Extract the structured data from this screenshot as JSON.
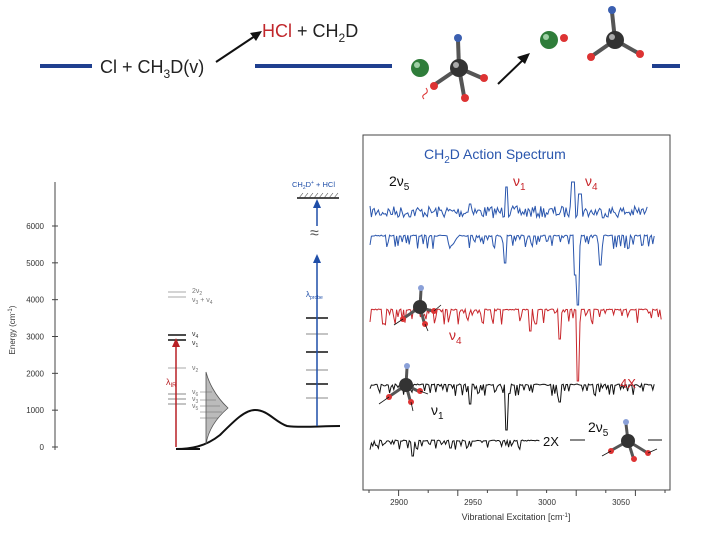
{
  "colors": {
    "navy": "#1f3f8f",
    "blue": "#1f4ea8",
    "red": "#c0262b",
    "dark": "#222222",
    "gray": "#888888",
    "spectrum_blue": "#2a56ad",
    "spectrum_red": "#c8262b",
    "spectrum_black": "#111111"
  },
  "reaction": {
    "reactant_prefix": "Cl + CH",
    "reactant_sub": "3",
    "reactant_suffix": "D(v)",
    "product_hcl": "HCl",
    "product_plus": " + CH",
    "product_sub": "2",
    "product_d": "D"
  },
  "energy_diagram": {
    "ylabel": "Energy (cm",
    "ylabel_sup": "-1",
    "ylabel_end": ")",
    "ticks": [
      "0",
      "1000",
      "2000",
      "3000",
      "4000",
      "5000",
      "6000"
    ],
    "level_2v2": "2ν",
    "level_2v2_sub": "2",
    "level_v3v4": "ν",
    "level_v3v4_mid": " + ν",
    "level_v4": "ν",
    "level_v4_sub": "4",
    "level_v1": "ν",
    "level_v1_sub": "1",
    "level_v2": "ν",
    "level_v2_sub": "2",
    "level_v6": "ν",
    "level_v6_sub": "6",
    "level_v5": "ν",
    "level_v5_sub": "5",
    "level_v3": "ν",
    "level_v3_sub": "3",
    "lambda_ir": "λ",
    "lambda_ir_sub": "IR",
    "lambda_probe": "λ",
    "lambda_probe_sub": "probe",
    "ion_label_a": "CH",
    "ion_label_sub": "2",
    "ion_label_b": "D",
    "ion_label_sup": "+",
    "ion_label_c": " + HCl",
    "approx": "≈"
  },
  "spectrum": {
    "title_a": "CH",
    "title_sub": "2",
    "title_b": "D Action Spectrum",
    "label_2v5_top": "2ν",
    "label_2v5_top_sub": "5",
    "label_v1_top": "ν",
    "label_v1_top_sub": "1",
    "label_v4_top": "ν",
    "label_v4_top_sub": "4",
    "label_v4_red": "ν",
    "label_v4_red_sub": "4",
    "label_4x": "4X",
    "label_v1_mid": "ν",
    "label_v1_mid_sub": "1",
    "label_2x": "2X",
    "label_2v5_bot": "2ν",
    "label_2v5_bot_sub": "5",
    "xlabel_a": "Vibrational Excitation [cm",
    "xlabel_sup": "-1",
    "xlabel_b": "]",
    "xticks": [
      "2900",
      "2950",
      "3000",
      "3050"
    ]
  }
}
